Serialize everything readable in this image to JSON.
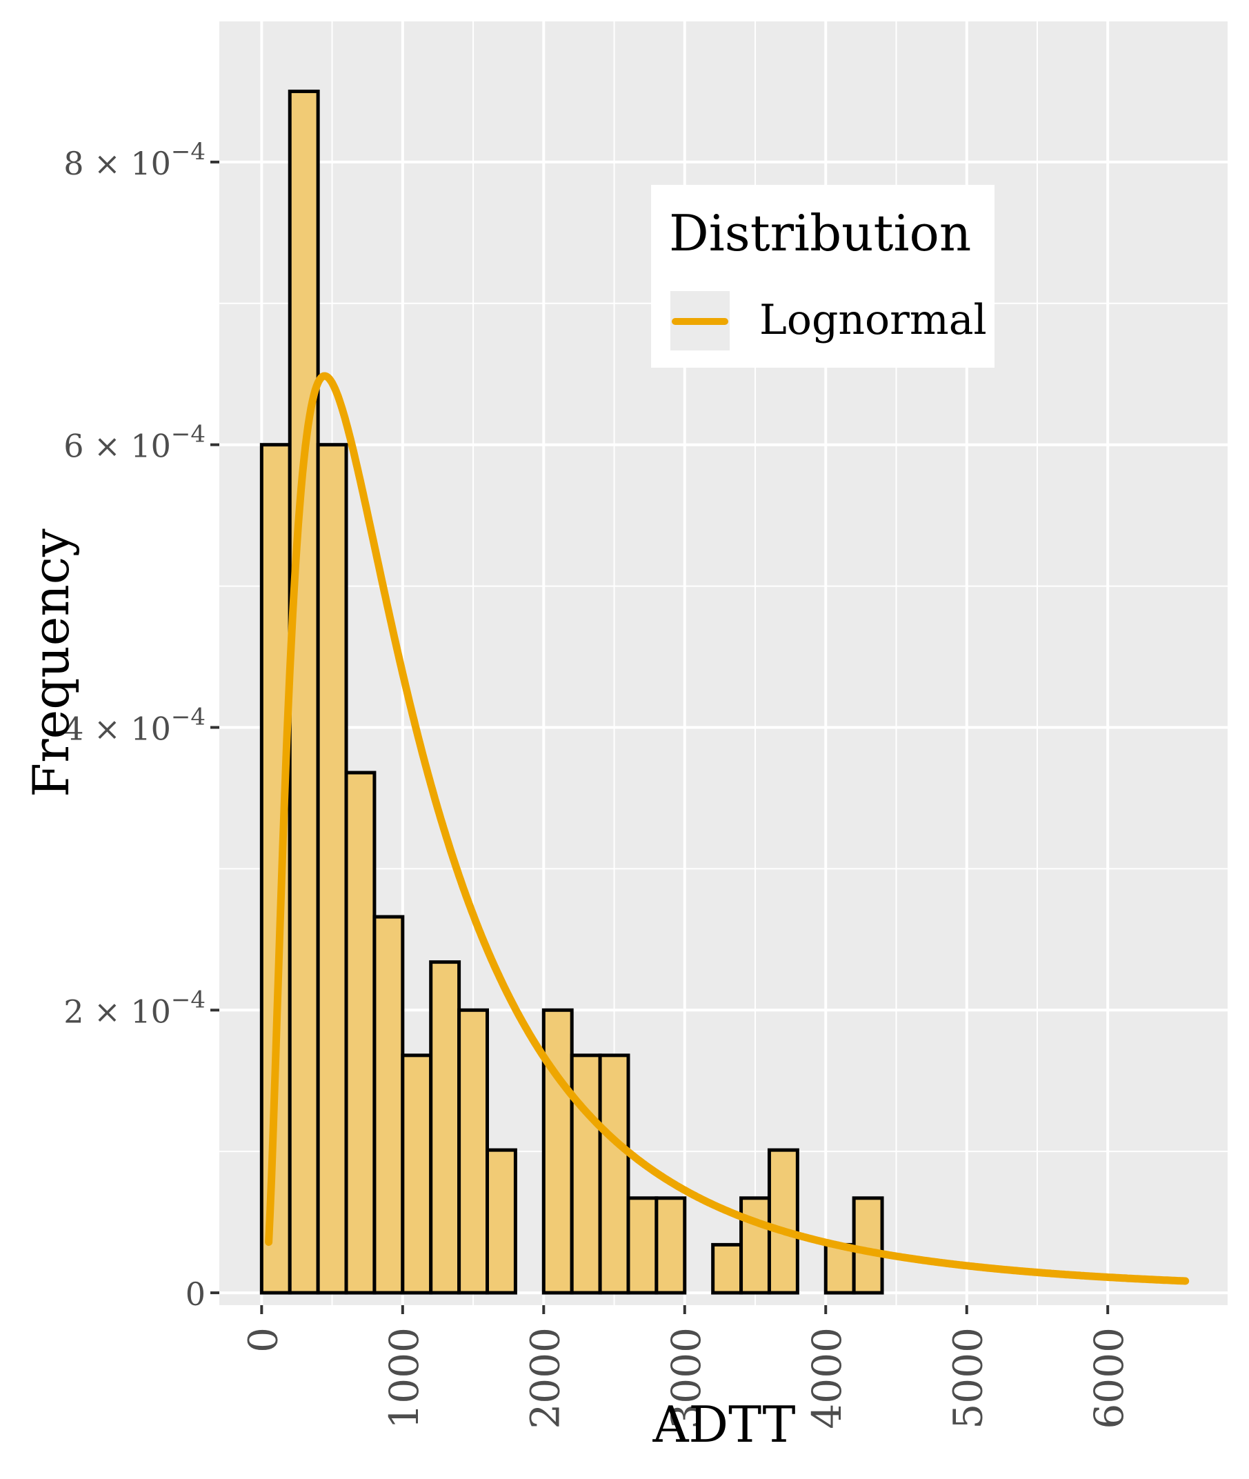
{
  "chart_data": {
    "type": "histogram",
    "title": "",
    "xlabel": "ADTT",
    "ylabel": "Frequency",
    "xlim": [
      -300,
      6850
    ],
    "ylim": [
      -8.75e-06,
      0.0009
    ],
    "x_ticks": [
      0,
      1000,
      2000,
      3000,
      4000,
      5000,
      6000
    ],
    "x_tick_labels": [
      "0",
      "1000",
      "2000",
      "3000",
      "4000",
      "5000",
      "6000"
    ],
    "y_ticks": [
      0,
      0.0002,
      0.0004,
      0.0006,
      0.0008
    ],
    "y_tick_labels": [
      {
        "mant": "0",
        "exp": ""
      },
      {
        "mant": "2 × 10",
        "exp": "−4"
      },
      {
        "mant": "4 × 10",
        "exp": "−4"
      },
      {
        "mant": "6 × 10",
        "exp": "−4"
      },
      {
        "mant": "8 × 10",
        "exp": "−4"
      }
    ],
    "bin_width": 200,
    "bins_start": 0,
    "histogram_values": [
      0.0006,
      0.00085,
      0.0006,
      0.000368,
      0.000266,
      0.000168,
      0.000234,
      0.0002,
      0.000101,
      0,
      0.0002,
      0.000168,
      0.000168,
      6.7e-05,
      6.7e-05,
      0,
      3.4e-05,
      6.7e-05,
      0.000101,
      0,
      3.4e-05,
      6.7e-05,
      0,
      0,
      0,
      0,
      0,
      0,
      0,
      0,
      0,
      0
    ],
    "series": [
      {
        "name": "Lognormal",
        "type": "line",
        "dist": "lognormal",
        "meanlog": 6.93,
        "sdlog": 0.91,
        "x_range": [
          50,
          6550
        ]
      }
    ],
    "legend": {
      "title": "Distribution",
      "entries": [
        "Lognormal"
      ],
      "position": "top-right"
    },
    "colors": {
      "panel": "#EBEBEB",
      "grid": "#FFFFFF",
      "bar_fill": "#F1CB75",
      "bar_stroke": "#000000",
      "line": "#EEA600"
    },
    "grid": true
  }
}
